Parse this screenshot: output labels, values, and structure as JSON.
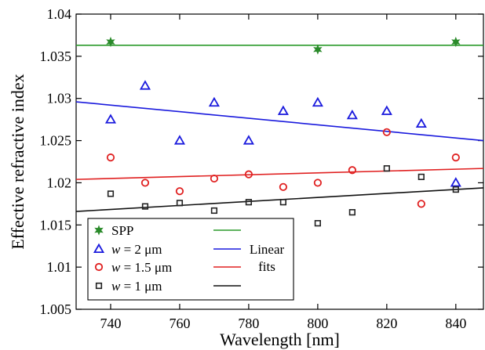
{
  "chart_data": {
    "type": "scatter",
    "xlabel": "Wavelength [nm]",
    "ylabel": "Effective refractive index",
    "xlim": [
      730,
      848
    ],
    "ylim": [
      1.005,
      1.04
    ],
    "xticks": [
      740,
      760,
      780,
      800,
      820,
      840
    ],
    "xtick_labels": [
      "740",
      "760",
      "780",
      "800",
      "820",
      "840"
    ],
    "yticks": [
      1.005,
      1.01,
      1.015,
      1.02,
      1.025,
      1.03,
      1.035,
      1.04
    ],
    "ytick_labels": [
      "1.005",
      "1.01",
      "1.015",
      "1.02",
      "1.025",
      "1.03",
      "1.035",
      "1.04"
    ],
    "grid": false,
    "legend_position": "bottom-left",
    "series": [
      {
        "name": "SPP",
        "name_parts": [
          "SPP"
        ],
        "marker": "star",
        "color": "#2a8a2a",
        "x": [
          740,
          800,
          840
        ],
        "y": [
          1.0367,
          1.0358,
          1.0367
        ]
      },
      {
        "name": "w = 2 μm",
        "name_parts": [
          "w",
          " = 2 μm"
        ],
        "marker": "triangle",
        "color": "#1a1add",
        "x": [
          740,
          750,
          760,
          770,
          780,
          790,
          800,
          810,
          820,
          830,
          840
        ],
        "y": [
          1.0275,
          1.0315,
          1.025,
          1.0295,
          1.025,
          1.0285,
          1.0295,
          1.028,
          1.0285,
          1.027,
          1.02
        ]
      },
      {
        "name": "w = 1.5 μm",
        "name_parts": [
          "w",
          " = 1.5 μm"
        ],
        "marker": "circle",
        "color": "#e02020",
        "x": [
          740,
          750,
          760,
          770,
          780,
          790,
          800,
          810,
          820,
          830,
          840
        ],
        "y": [
          1.023,
          1.02,
          1.019,
          1.0205,
          1.021,
          1.0195,
          1.02,
          1.0215,
          1.026,
          1.0175,
          1.023
        ]
      },
      {
        "name": "w = 1 μm",
        "name_parts": [
          "w",
          " = 1 μm"
        ],
        "marker": "square",
        "color": "#222222",
        "x": [
          740,
          750,
          760,
          770,
          780,
          790,
          800,
          810,
          820,
          830,
          840
        ],
        "y": [
          1.0187,
          1.0172,
          1.0176,
          1.0167,
          1.0177,
          1.0177,
          1.0152,
          1.0165,
          1.0217,
          1.0207,
          1.0192
        ]
      }
    ],
    "fit_lines": [
      {
        "series": "SPP",
        "color": "#2a9a2a",
        "x": [
          730,
          848
        ],
        "y": [
          1.0363,
          1.0363
        ]
      },
      {
        "series": "w = 2 μm",
        "color": "#1a1add",
        "x": [
          730,
          848
        ],
        "y": [
          1.0296,
          1.025
        ]
      },
      {
        "series": "w = 1.5 μm",
        "color": "#e02020",
        "x": [
          730,
          848
        ],
        "y": [
          1.0204,
          1.0217
        ]
      },
      {
        "series": "w = 1 μm",
        "color": "#111111",
        "x": [
          730,
          848
        ],
        "y": [
          1.0166,
          1.0194
        ]
      }
    ],
    "legend_fit_label_lines": [
      "Linear",
      "fits"
    ]
  }
}
